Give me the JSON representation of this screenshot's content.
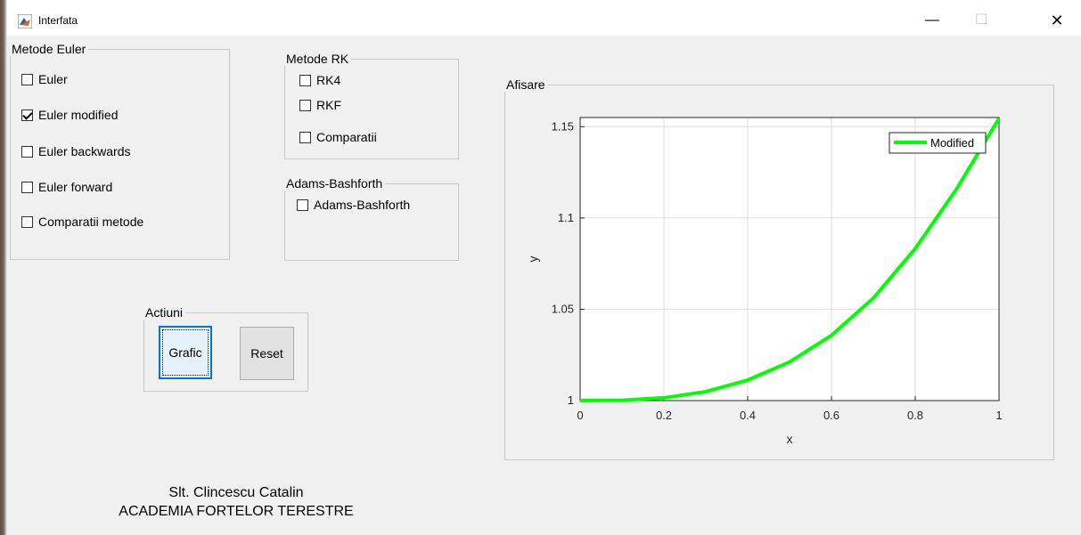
{
  "window": {
    "title": "Interfata",
    "controls": {
      "minimize": "—",
      "maximize": "☐",
      "close": "✕"
    }
  },
  "euler_panel": {
    "title": "Metode Euler",
    "options": [
      {
        "label": "Euler",
        "checked": false
      },
      {
        "label": "Euler modified",
        "checked": true
      },
      {
        "label": "Euler backwards",
        "checked": false
      },
      {
        "label": "Euler forward",
        "checked": false
      },
      {
        "label": "Comparatii metode",
        "checked": false
      }
    ]
  },
  "rk_panel": {
    "title": "Metode RK",
    "options": [
      {
        "label": "RK4",
        "checked": false
      },
      {
        "label": "RKF",
        "checked": false
      },
      {
        "label": "Comparatii",
        "checked": false
      }
    ]
  },
  "adams_panel": {
    "title": "Adams-Bashforth",
    "options": [
      {
        "label": "Adams-Bashforth",
        "checked": false
      }
    ]
  },
  "actions_panel": {
    "title": "Actiuni",
    "grafic_label": "Grafic",
    "reset_label": "Reset"
  },
  "display_panel": {
    "title": "Afisare"
  },
  "footer": {
    "line1": "Slt. Clincescu Catalin",
    "line2": "ACADEMIA FORTELOR TERESTRE"
  },
  "chart_data": {
    "type": "line",
    "xlabel": "x",
    "ylabel": "y",
    "xlim": [
      0,
      1
    ],
    "ylim": [
      1,
      1.155
    ],
    "x_ticks": [
      "0",
      "0.2",
      "0.4",
      "0.6",
      "0.8",
      "1"
    ],
    "y_ticks": [
      "1",
      "1.05",
      "1.1",
      "1.15"
    ],
    "grid": true,
    "legend_position": "top-right",
    "series": [
      {
        "name": "Modified",
        "color": "#00ff00",
        "x": [
          0,
          0.1,
          0.2,
          0.3,
          0.4,
          0.5,
          0.6,
          0.7,
          0.8,
          0.9,
          1.0
        ],
        "y": [
          1.0,
          1.0002,
          1.0015,
          1.0049,
          1.0112,
          1.0211,
          1.0357,
          1.0561,
          1.0832,
          1.1163,
          1.1545
        ]
      }
    ]
  }
}
